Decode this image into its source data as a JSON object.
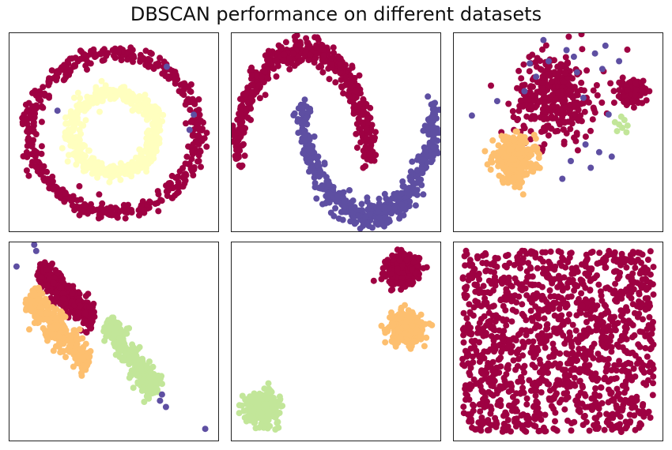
{
  "title": "DBSCAN performance on different datasets",
  "colors": {
    "noise": "#5e4fa2",
    "cluster0": "#9e0142",
    "cluster1": "#ffffbf",
    "cluster2": "#fdbf6f",
    "cluster3": "#c2e699"
  },
  "chart_data": [
    {
      "type": "scatter",
      "dataset": "circles",
      "xlim": [
        -1.25,
        1.25
      ],
      "ylim": [
        -1.25,
        1.25
      ],
      "ticks": "none",
      "grid": false,
      "series": [
        {
          "cluster": 0,
          "color": "#9e0142",
          "shape": "ring",
          "center": [
            0,
            0
          ],
          "radius": 1.0,
          "spread": 0.05,
          "n": 500
        },
        {
          "cluster": 1,
          "color": "#ffffbf",
          "shape": "ring",
          "center": [
            0,
            0
          ],
          "radius": 0.5,
          "spread": 0.05,
          "n": 500
        },
        {
          "cluster": -1,
          "color": "#5e4fa2",
          "shape": "points",
          "points": [
            [
              -0.67,
              0.27
            ],
            [
              0.63,
              0.82
            ],
            [
              0.9,
              0.03
            ],
            [
              0.95,
              0.22
            ]
          ]
        }
      ]
    },
    {
      "type": "scatter",
      "dataset": "moons",
      "xlim": [
        -1.1,
        2.1
      ],
      "ylim": [
        -0.65,
        1.15
      ],
      "ticks": "none",
      "grid": false,
      "series": [
        {
          "cluster": 0,
          "color": "#9e0142",
          "shape": "arc",
          "center": [
            0,
            0
          ],
          "radius": 1.0,
          "from": 0,
          "to": 180,
          "spread": 0.06,
          "n": 500
        },
        {
          "cluster": 1,
          "color": "#5e4fa2",
          "shape": "arc",
          "center": [
            1,
            0.5
          ],
          "radius": 1.0,
          "from": 180,
          "to": 360,
          "spread": 0.06,
          "n": 500
        }
      ]
    },
    {
      "type": "scatter",
      "dataset": "varied blobs",
      "xlim": [
        -12,
        8
      ],
      "ylim": [
        -10,
        8
      ],
      "ticks": "none",
      "grid": false,
      "series": [
        {
          "cluster": 0,
          "color": "#9e0142",
          "shape": "blob",
          "center": [
            -2.3,
            2.3
          ],
          "sd": 1.9,
          "n": 350
        },
        {
          "cluster": 0,
          "color": "#9e0142",
          "shape": "blob",
          "center": [
            5,
            2.6
          ],
          "sd": 0.55,
          "n": 150
        },
        {
          "cluster": 2,
          "color": "#fdbf6f",
          "shape": "blob",
          "center": [
            -6.2,
            -3.5
          ],
          "sd": 1.0,
          "n": 320
        },
        {
          "cluster": 3,
          "color": "#c2e699",
          "shape": "points",
          "points": [
            [
              3.8,
              -0.3
            ],
            [
              4.3,
              0.1
            ],
            [
              4.1,
              -0.6
            ],
            [
              3.6,
              -0.9
            ],
            [
              4.6,
              -0.4
            ],
            [
              4.0,
              0.4
            ],
            [
              3.4,
              -0.1
            ],
            [
              4.5,
              -1.0
            ]
          ]
        },
        {
          "cluster": -1,
          "color": "#5e4fa2",
          "shape": "points",
          "points": [
            [
              -3.4,
              7.3
            ],
            [
              -4.7,
              5.2
            ],
            [
              -1.2,
              6.4
            ],
            [
              1.5,
              6.1
            ],
            [
              -0.5,
              5.8
            ],
            [
              2.2,
              4.7
            ],
            [
              3.8,
              5.4
            ],
            [
              -7.8,
              1.8
            ],
            [
              -10.2,
              0.5
            ],
            [
              -4.1,
              4.0
            ],
            [
              2.8,
              0.6
            ],
            [
              1.9,
              -2.8
            ],
            [
              1.1,
              -4.2
            ],
            [
              0.6,
              -2.1
            ],
            [
              -0.8,
              -3.6
            ],
            [
              3.1,
              -3.2
            ],
            [
              -1.6,
              -5.2
            ],
            [
              -5.2,
              2.7
            ],
            [
              2.5,
              6.8
            ],
            [
              -0.2,
              4.4
            ],
            [
              -2.9,
              5.4
            ],
            [
              0.4,
              2.1
            ]
          ]
        }
      ]
    },
    {
      "type": "scatter",
      "dataset": "anisotropic blobs",
      "xlim": [
        -6.5,
        4.2
      ],
      "ylim": [
        -4.1,
        2.3
      ],
      "ticks": "none",
      "grid": false,
      "series": [
        {
          "cluster": 0,
          "color": "#9e0142",
          "shape": "line",
          "from": [
            -5.0,
            1.4
          ],
          "to": [
            -2.2,
            -0.3
          ],
          "width": 0.22,
          "n": 300
        },
        {
          "cluster": 2,
          "color": "#fdbf6f",
          "shape": "line",
          "from": [
            -5.5,
            0.6
          ],
          "to": [
            -2.5,
            -1.7
          ],
          "width": 0.25,
          "n": 300
        },
        {
          "cluster": 3,
          "color": "#c2e699",
          "shape": "line",
          "from": [
            -1.5,
            -0.3
          ],
          "to": [
            1.1,
            -2.5
          ],
          "width": 0.22,
          "n": 300
        },
        {
          "cluster": -1,
          "color": "#5e4fa2",
          "shape": "points",
          "points": [
            [
              -5.2,
              2.2
            ],
            [
              -5.1,
              2.0
            ],
            [
              -6.1,
              1.5
            ],
            [
              1.2,
              -2.8
            ],
            [
              1.3,
              -2.6
            ],
            [
              1.5,
              -3.0
            ],
            [
              3.5,
              -3.7
            ]
          ]
        }
      ]
    },
    {
      "type": "scatter",
      "dataset": "blobs",
      "xlim": [
        -10.5,
        8
      ],
      "ylim": [
        -11,
        8
      ],
      "ticks": "none",
      "grid": false,
      "series": [
        {
          "cluster": 0,
          "color": "#9e0142",
          "shape": "blob",
          "center": [
            4.6,
            5.3
          ],
          "sd": 0.7,
          "n": 380
        },
        {
          "cluster": 2,
          "color": "#fdbf6f",
          "shape": "blob",
          "center": [
            4.9,
            -0.2
          ],
          "sd": 0.7,
          "n": 380
        },
        {
          "cluster": 3,
          "color": "#c2e699",
          "shape": "blob",
          "center": [
            -7.7,
            -7.8
          ],
          "sd": 0.7,
          "n": 380
        }
      ]
    },
    {
      "type": "scatter",
      "dataset": "uniform",
      "xlim": [
        -0.05,
        1.05
      ],
      "ylim": [
        -0.05,
        1.05
      ],
      "ticks": "none",
      "grid": false,
      "series": [
        {
          "cluster": 0,
          "color": "#9e0142",
          "shape": "uniform",
          "range": [
            [
              0,
              1
            ],
            [
              0,
              1
            ]
          ],
          "n": 1300
        }
      ]
    }
  ]
}
